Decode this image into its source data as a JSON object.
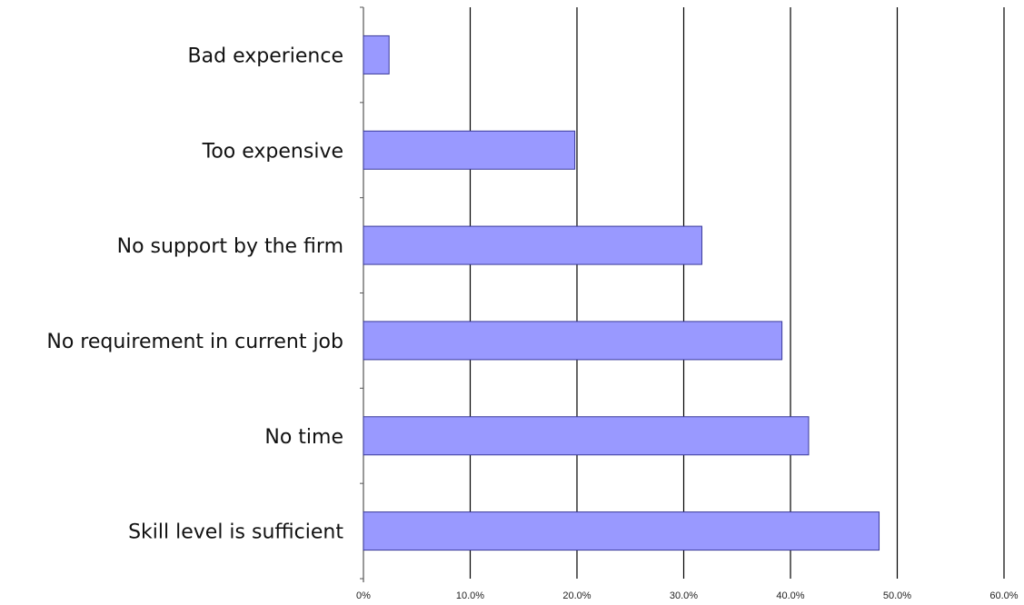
{
  "chart_data": {
    "type": "bar",
    "orientation": "horizontal",
    "categories": [
      "Bad experience",
      "Too expensive",
      "No support by the firm",
      "No requirement in current job",
      "No time",
      "Skill level is sufficient"
    ],
    "values": [
      2.4,
      19.8,
      31.7,
      39.2,
      41.7,
      48.3
    ],
    "xlim": [
      0,
      60
    ],
    "xticks": [
      0,
      10,
      20,
      30,
      40,
      50,
      60
    ],
    "xtick_labels": [
      "0%",
      "10.0%",
      "20.0%",
      "30.0%",
      "40.0%",
      "50.0%",
      "60.0%"
    ],
    "title": "",
    "xlabel": "",
    "ylabel": "",
    "grid": "vertical major gridlines",
    "legend": "none",
    "bar_color": "#9999ff",
    "bar_edge_color": "#3a3a9a"
  }
}
